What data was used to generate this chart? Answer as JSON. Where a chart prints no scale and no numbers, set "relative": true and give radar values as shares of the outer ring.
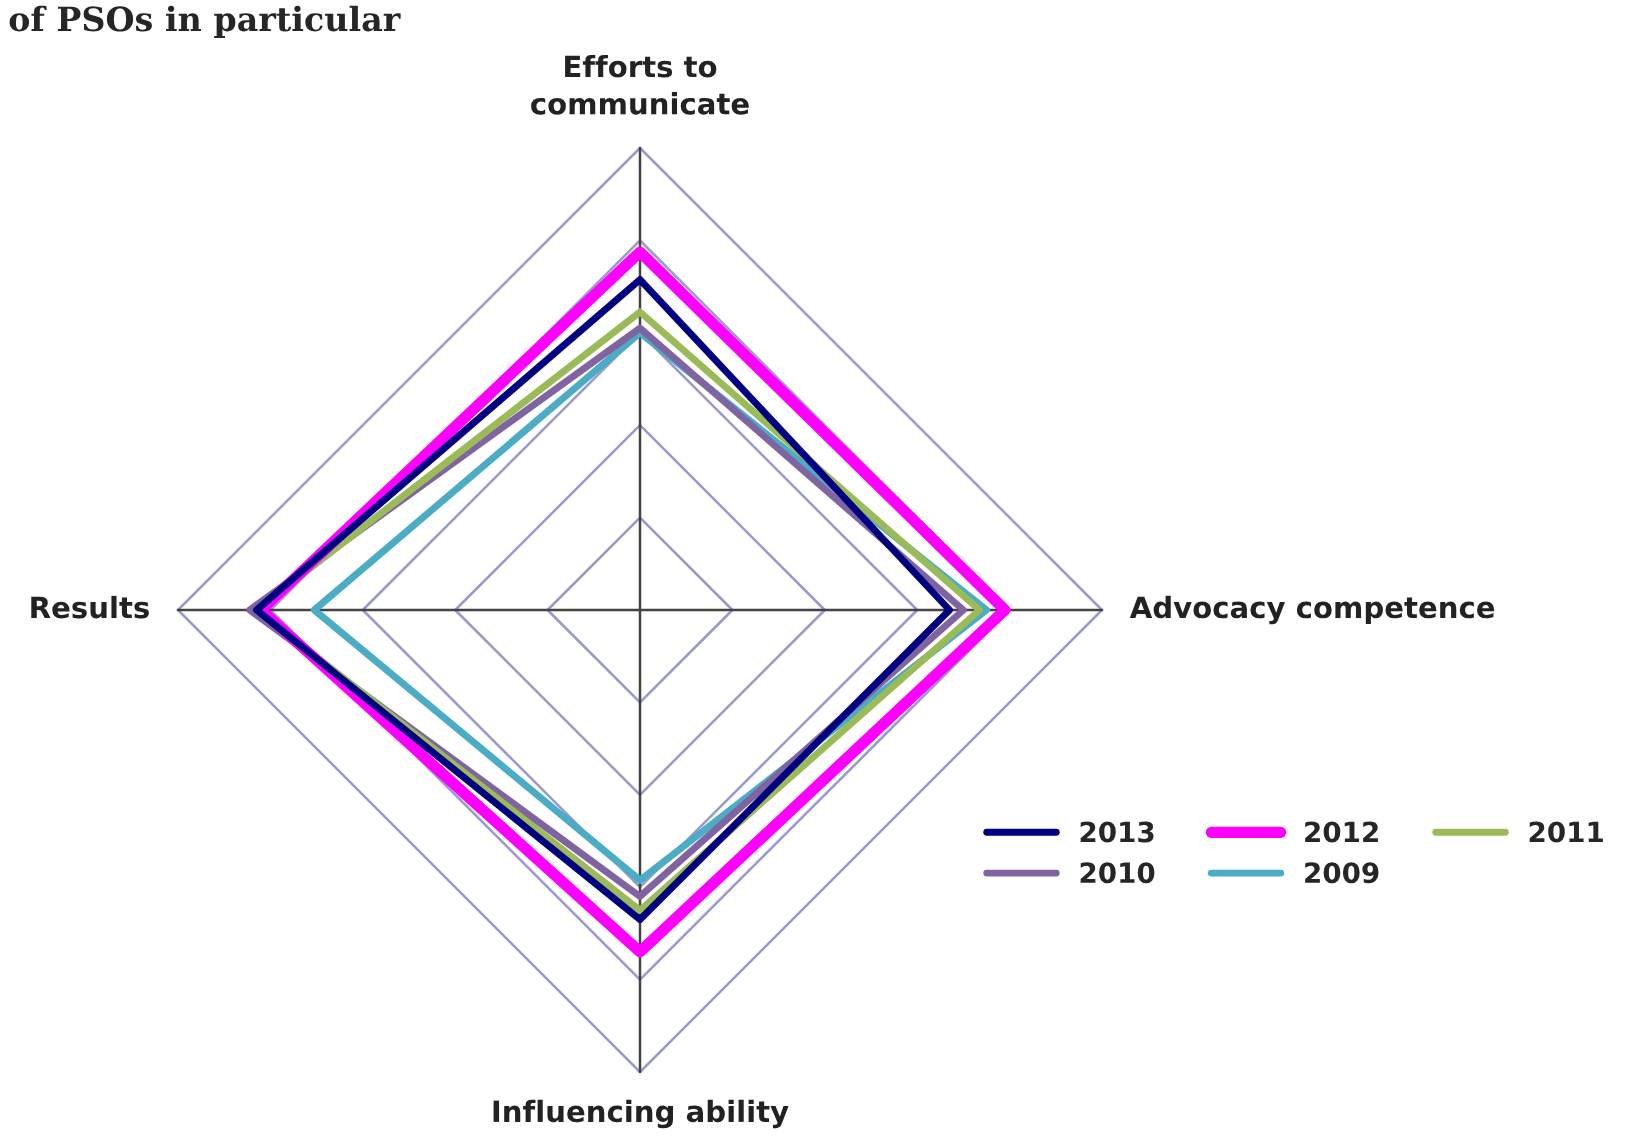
{
  "chart_data": {
    "type": "radar",
    "title": "of PSOs in particular",
    "relative": true,
    "grid": true,
    "legend": "bottom right",
    "marker": "none",
    "line_style": "solid",
    "categories": [
      "Efforts to\ncommunicate",
      "Advocacy competence",
      "Influencing ability",
      "Results"
    ],
    "series": [
      {
        "name": "2013",
        "color": "#000080",
        "values": [
          0.715,
          0.67,
          0.67,
          0.83
        ]
      },
      {
        "name": "2012",
        "color": "#ff00ff",
        "values": [
          0.775,
          0.79,
          0.74,
          0.82
        ]
      },
      {
        "name": "2011",
        "color": "#9bbb59",
        "values": [
          0.645,
          0.735,
          0.65,
          0.83
        ]
      },
      {
        "name": "2010",
        "color": "#8064a2",
        "values": [
          0.61,
          0.7,
          0.62,
          0.845
        ]
      },
      {
        "name": "2009",
        "color": "#4bacc6",
        "values": [
          0.6,
          0.75,
          0.585,
          0.705
        ]
      }
    ]
  }
}
